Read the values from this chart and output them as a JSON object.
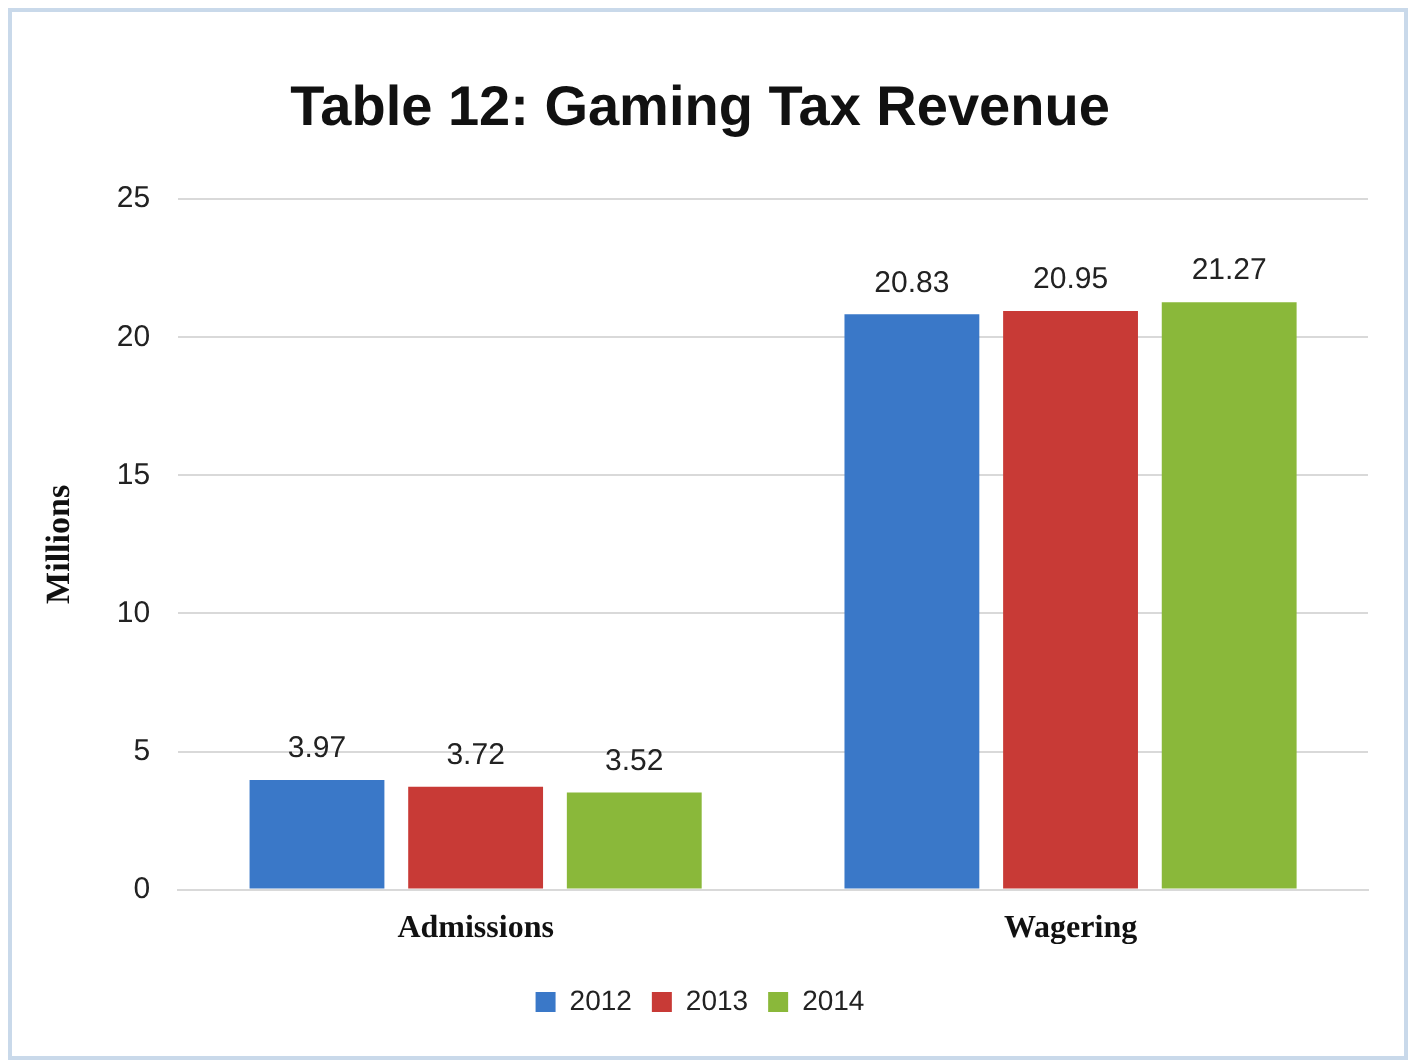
{
  "chart_data": {
    "type": "bar",
    "title": "Table 12: Gaming Tax Revenue",
    "ylabel": "Millions",
    "categories": [
      "Admissions",
      "Wagering"
    ],
    "series": [
      {
        "name": "2012",
        "color": "#3a78c8",
        "values": [
          3.97,
          20.83
        ]
      },
      {
        "name": "2013",
        "color": "#c83a36",
        "values": [
          3.72,
          20.95
        ]
      },
      {
        "name": "2014",
        "color": "#8ab83a",
        "values": [
          3.52,
          21.27
        ]
      }
    ],
    "ylim": [
      0,
      25
    ],
    "yticks": [
      0,
      5,
      10,
      15,
      20,
      25
    ],
    "grid": "y",
    "legend": "bottom",
    "data_labels": true
  }
}
